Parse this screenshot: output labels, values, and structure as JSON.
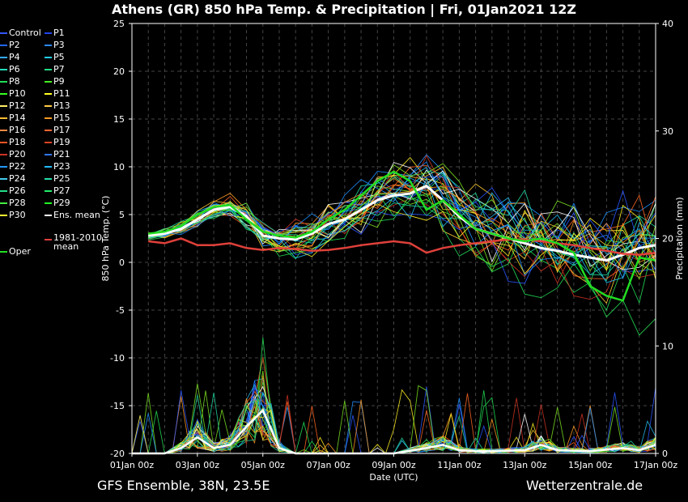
{
  "header": {
    "title": "Athens  (GR)  850 hPa Temp. & Precipitation | Fri, 01Jan2021 12Z"
  },
  "footer": {
    "left": "GFS Ensemble, 38N, 23.5E",
    "right": "Wetterzentrale.de"
  },
  "colors": {
    "background": "#000000",
    "grid": "#555555",
    "ens_mean": "#ffffff",
    "climate_mean": "#e0403a",
    "oper": "#22dd22",
    "member_palette": [
      "#2a55ff",
      "#1e8fff",
      "#22bbee",
      "#1fd6a0",
      "#22dd55",
      "#7be022",
      "#ffee22",
      "#ffcc33",
      "#ff9922",
      "#ff6622",
      "#cc3322",
      "#ffffff"
    ]
  },
  "legend": {
    "entries": [
      {
        "label": "Control",
        "color": "#3355ff"
      },
      {
        "label": "P1",
        "color": "#2244ee"
      },
      {
        "label": "P2",
        "color": "#2266ff"
      },
      {
        "label": "P3",
        "color": "#2a88ff"
      },
      {
        "label": "P4",
        "color": "#33aaff"
      },
      {
        "label": "P5",
        "color": "#22ccee"
      },
      {
        "label": "P6",
        "color": "#22ddbb"
      },
      {
        "label": "P7",
        "color": "#22dd88"
      },
      {
        "label": "P8",
        "color": "#22dd55"
      },
      {
        "label": "P9",
        "color": "#44ee22"
      },
      {
        "label": "P10",
        "color": "#33ff22"
      },
      {
        "label": "P11",
        "color": "#ffff22"
      },
      {
        "label": "P12",
        "color": "#ffee66"
      },
      {
        "label": "P13",
        "color": "#ffcc44"
      },
      {
        "label": "P14",
        "color": "#ffbb33"
      },
      {
        "label": "P15",
        "color": "#ff9922"
      },
      {
        "label": "P16",
        "color": "#ff8844"
      },
      {
        "label": "P17",
        "color": "#ff6633"
      },
      {
        "label": "P18",
        "color": "#ff5522"
      },
      {
        "label": "P19",
        "color": "#dd4422"
      },
      {
        "label": "P20",
        "color": "#cc3322"
      },
      {
        "label": "P21",
        "color": "#3377ff"
      },
      {
        "label": "P22",
        "color": "#2299ff"
      },
      {
        "label": "P23",
        "color": "#22bbff"
      },
      {
        "label": "P24",
        "color": "#44ccee"
      },
      {
        "label": "P25",
        "color": "#22ddaa"
      },
      {
        "label": "P26",
        "color": "#22dd88"
      },
      {
        "label": "P27",
        "color": "#22ee66"
      },
      {
        "label": "P28",
        "color": "#44ee44"
      },
      {
        "label": "P29",
        "color": "#22ff22"
      },
      {
        "label": "P30",
        "color": "#ffff33"
      },
      {
        "label": "Ens. mean",
        "color": "#ffffff"
      },
      {
        "label": "1981-2010 mean",
        "color": "#e0403a"
      },
      {
        "label": "Oper",
        "color": "#22dd22"
      }
    ]
  },
  "chart_data": {
    "type": "line",
    "title": "Athens  (GR)  850 hPa Temp. & Precipitation | Fri, 01Jan2021 12Z",
    "xlabel": "Date (UTC)",
    "ylabel": "850 hPa Temp. (°C)",
    "y2label": "Precipitation (mm)",
    "x_ticks": [
      "01Jan 00z",
      "03Jan 00z",
      "05Jan 00z",
      "07Jan 00z",
      "09Jan 00z",
      "11Jan 00z",
      "13Jan 00z",
      "15Jan 00z",
      "17Jan 00z"
    ],
    "x_range_days": [
      0,
      16
    ],
    "ylim": [
      -20,
      25
    ],
    "y_ticks": [
      25,
      20,
      15,
      10,
      5,
      0,
      -5,
      -10,
      -15,
      -20
    ],
    "y2lim": [
      0,
      40
    ],
    "y2_ticks": [
      40,
      30,
      20,
      10,
      0
    ],
    "grid": true,
    "legend_position": "left",
    "series": [
      {
        "name": "Ens. mean",
        "x": [
          0.5,
          1,
          1.5,
          2,
          2.5,
          3,
          3.5,
          4,
          4.5,
          5,
          5.5,
          6,
          6.5,
          7,
          7.5,
          8,
          8.5,
          9,
          9.5,
          10,
          10.5,
          11,
          11.5,
          12,
          12.5,
          13,
          13.5,
          14,
          14.5,
          15,
          15.5,
          16
        ],
        "values": [
          2.8,
          3.0,
          3.5,
          4.5,
          5.5,
          5.8,
          4.8,
          2.8,
          2.5,
          2.4,
          3.0,
          4.0,
          4.5,
          5.5,
          6.5,
          7.0,
          7.2,
          8.0,
          6.5,
          4.8,
          3.5,
          3.0,
          2.5,
          2.0,
          1.5,
          1.2,
          0.8,
          0.5,
          0.2,
          0.8,
          1.5,
          1.8
        ]
      },
      {
        "name": "1981-2010 mean",
        "x": [
          0.5,
          1,
          1.5,
          2,
          2.5,
          3,
          3.5,
          4,
          4.5,
          5,
          5.5,
          6,
          6.5,
          7,
          7.5,
          8,
          8.5,
          9,
          9.5,
          10,
          10.5,
          11,
          11.5,
          12,
          12.5,
          13,
          13.5,
          14,
          14.5,
          15,
          15.5,
          16
        ],
        "values": [
          2.2,
          2.0,
          2.5,
          1.8,
          1.8,
          2.0,
          1.5,
          1.3,
          1.5,
          1.4,
          1.2,
          1.3,
          1.5,
          1.8,
          2.0,
          2.2,
          2.0,
          1.0,
          1.5,
          1.8,
          2.0,
          2.2,
          2.4,
          2.4,
          2.2,
          2.0,
          1.8,
          1.5,
          1.2,
          0.9,
          0.8,
          1.0
        ]
      },
      {
        "name": "Oper",
        "x": [
          0.5,
          1,
          1.5,
          2,
          2.5,
          3,
          3.5,
          4,
          4.5,
          5,
          5.5,
          6,
          6.5,
          7,
          7.5,
          8,
          8.5,
          9,
          9.5,
          10,
          10.5,
          11,
          11.5,
          12,
          12.5,
          13,
          13.5,
          14,
          14.5,
          15,
          15.5,
          16
        ],
        "values": [
          3.0,
          3.2,
          3.8,
          5.0,
          5.8,
          6.0,
          4.5,
          3.2,
          2.8,
          2.6,
          3.2,
          4.5,
          5.5,
          7.0,
          8.5,
          9.5,
          8.5,
          5.5,
          6.5,
          5.0,
          3.5,
          3.0,
          2.5,
          2.2,
          2.5,
          2.0,
          1.0,
          -2.5,
          -3.5,
          -4.0,
          0.5,
          0.2
        ]
      }
    ],
    "precip_series": [
      {
        "name": "Ens. mean precip",
        "x": [
          0,
          1,
          1.5,
          2,
          2.5,
          3,
          3.5,
          4,
          4.5,
          5,
          6,
          7,
          8,
          9,
          9.5,
          10,
          10.5,
          11,
          12,
          12.5,
          13,
          14,
          15,
          15.5,
          16
        ],
        "values": [
          0,
          0,
          0.5,
          1.5,
          0.5,
          0.8,
          2.5,
          4.0,
          0.5,
          0,
          0,
          0,
          0,
          0.5,
          0.8,
          0.3,
          0.2,
          0.2,
          0.3,
          0.8,
          0.3,
          0.2,
          0.5,
          0.3,
          0.8
        ]
      }
    ],
    "members_count": 31
  }
}
